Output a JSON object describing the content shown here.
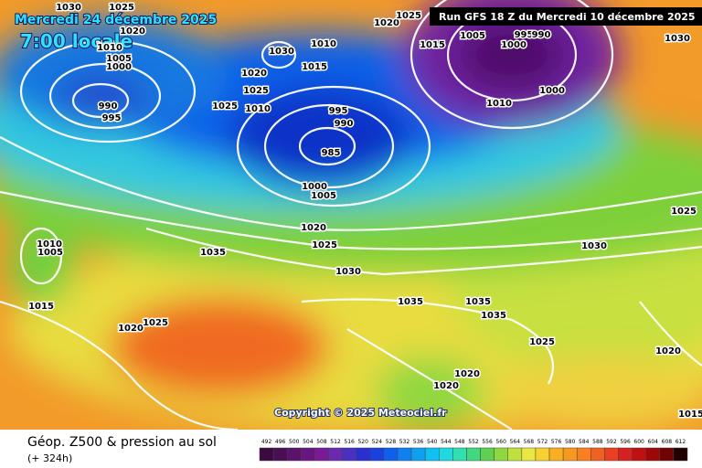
{
  "header": {
    "date": "Mercredi 24 décembre 2025",
    "time": "7:00 locale",
    "run": "Run GFS 18 Z du Mercredi 10 décembre 2025"
  },
  "footer": {
    "title": "Géop. Z500 & pression au sol",
    "lead": "(+ 324h)",
    "copyright": "Copyright © 2025 Meteociel.fr"
  },
  "legend": {
    "values": [
      492,
      496,
      500,
      504,
      508,
      512,
      516,
      520,
      524,
      528,
      532,
      536,
      540,
      544,
      548,
      552,
      556,
      560,
      564,
      568,
      572,
      576,
      580,
      584,
      588,
      592,
      596,
      600,
      604,
      608,
      612
    ],
    "colors": [
      "#3a0a40",
      "#4a0e55",
      "#5a126a",
      "#6a1680",
      "#7a1a96",
      "#6a2ab0",
      "#4a30c0",
      "#2a30d0",
      "#1a40e0",
      "#1060f0",
      "#1080f0",
      "#10a0f0",
      "#10c0f0",
      "#20d8e0",
      "#30e0b0",
      "#40d880",
      "#60d050",
      "#90d840",
      "#c0e040",
      "#e8e840",
      "#f8d030",
      "#f8b020",
      "#f89820",
      "#f88020",
      "#f06020",
      "#e84020",
      "#d82020",
      "#c01010",
      "#a00808",
      "#700404",
      "#200000"
    ]
  },
  "isobar_labels": [
    "1030",
    "1025",
    "1020",
    "1010",
    "1005",
    "1000",
    "990",
    "995",
    "1030",
    "1020",
    "1025",
    "1025",
    "1010",
    "1010",
    "1015",
    "1020",
    "1025",
    "1015",
    "1005",
    "995",
    "990",
    "1000",
    "1000",
    "1010",
    "995",
    "990",
    "985",
    "1000",
    "1005",
    "1020",
    "1025",
    "1030",
    "1035",
    "1010",
    "1005",
    "1015",
    "1020",
    "1025",
    "1035",
    "1035",
    "1035",
    "1025",
    "1030",
    "1025",
    "1030",
    "1020",
    "1020",
    "1020",
    "1015"
  ]
}
